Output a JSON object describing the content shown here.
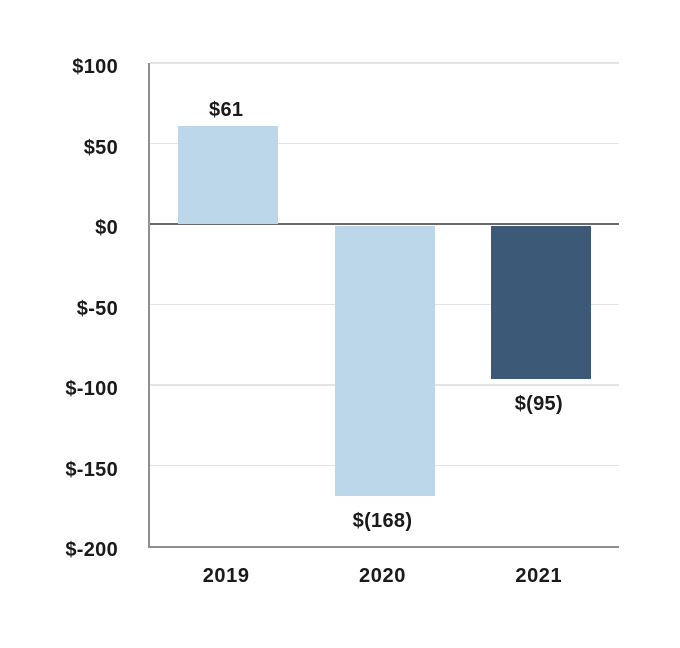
{
  "chart_data": {
    "type": "bar",
    "title": "",
    "xlabel": "",
    "ylabel": "",
    "categories": [
      "2019",
      "2020",
      "2021"
    ],
    "values": [
      61,
      -168,
      -95
    ],
    "bar_labels": [
      "$61",
      "$(168)",
      "$(95)"
    ],
    "bar_colors": [
      "#bcd6ea",
      "#bcd6ea",
      "#3c5a78"
    ],
    "y_ticks": [
      {
        "value": 100,
        "label": "$100"
      },
      {
        "value": 50,
        "label": "$50"
      },
      {
        "value": 0,
        "label": "$0"
      },
      {
        "value": -50,
        "label": "$-50"
      },
      {
        "value": -100,
        "label": "$-100"
      },
      {
        "value": -150,
        "label": "$-150"
      },
      {
        "value": -200,
        "label": "$-200"
      }
    ],
    "ylim": [
      -200,
      100
    ],
    "grid": true,
    "legend": false,
    "style_colors": {
      "bar_light_blue": "#bcd6ea",
      "bar_dark_blue": "#3c5a78",
      "gridline": "#e4e4e4",
      "zero_line": "#6a6a6a",
      "axis_line": "#8f8f8f",
      "text": "#1a1a1a",
      "background": "#ffffff"
    }
  }
}
